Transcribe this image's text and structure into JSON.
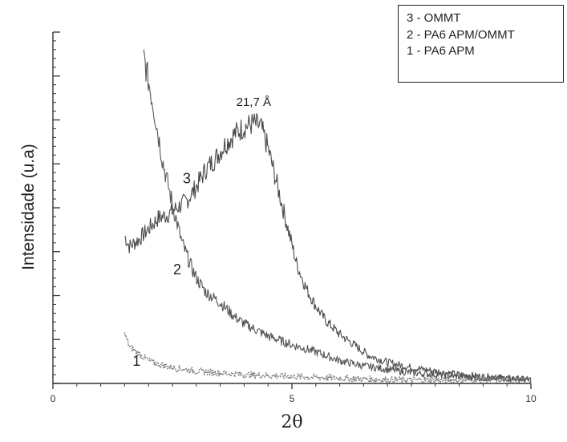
{
  "chart_data": {
    "type": "line",
    "title": "",
    "xlabel": "2θ",
    "ylabel": "Intensidade (u.a)",
    "xlim": [
      0,
      10
    ],
    "ylim": [
      0,
      100
    ],
    "x_ticks": [
      "0",
      "5",
      "10"
    ],
    "legend": [
      "3 - OMMT",
      "2 - PA6  APM/OMMT",
      "1 - PA6  APM"
    ],
    "legend_position": "top-right",
    "annotation": "21,7 Å",
    "annotation_x": 4.2,
    "annotation_y": 79,
    "series": [
      {
        "name": "3 - OMMT",
        "label": "3",
        "label_x": 2.8,
        "label_y": 57,
        "color": "#4a4a4a",
        "style": "solid",
        "x": [
          1.5,
          1.6,
          1.8,
          2.0,
          2.2,
          2.4,
          2.6,
          2.8,
          3.0,
          3.2,
          3.4,
          3.6,
          3.8,
          4.0,
          4.2,
          4.35,
          4.5,
          4.7,
          4.9,
          5.1,
          5.3,
          5.5,
          5.7,
          6.0,
          6.3,
          6.6,
          7.0,
          7.5,
          8.0,
          8.5,
          9.0,
          9.5,
          10.0
        ],
        "y": [
          42,
          39,
          41,
          44,
          47,
          48,
          50,
          52,
          56,
          61,
          64,
          68,
          71,
          73,
          74,
          73,
          67,
          56,
          45,
          34,
          27,
          22,
          18,
          14,
          11,
          8,
          6,
          4.5,
          3.5,
          2.5,
          2,
          1.5,
          1
        ]
      },
      {
        "name": "2 - PA6  APM/OMMT",
        "label": "2",
        "label_x": 2.6,
        "label_y": 31,
        "color": "#555555",
        "style": "solid",
        "x": [
          1.9,
          2.0,
          2.1,
          2.3,
          2.5,
          2.7,
          2.9,
          3.0,
          3.2,
          3.5,
          3.8,
          4.0,
          4.5,
          5.0,
          5.5,
          6.0,
          6.5,
          7.0,
          7.5,
          8.0,
          8.5,
          9.0,
          9.5,
          10.0
        ],
        "y": [
          93,
          86,
          79,
          63,
          51,
          40,
          33,
          30,
          26,
          23,
          19,
          17,
          13.5,
          11,
          9,
          6.5,
          5,
          4,
          3,
          2.5,
          2,
          1.5,
          1.5,
          1
        ]
      },
      {
        "name": "1 - PA6  APM",
        "label": "1",
        "label_x": 1.75,
        "label_y": 5,
        "color": "#777777",
        "style": "dotted",
        "x": [
          1.5,
          1.6,
          1.8,
          2.0,
          2.2,
          2.5,
          3.0,
          3.5,
          4.0,
          5.0,
          6.0,
          7.0,
          8.0,
          9.0,
          10.0
        ],
        "y": [
          14,
          10.5,
          8.5,
          6.5,
          5.5,
          4.5,
          3.5,
          3,
          2.5,
          2,
          1.5,
          1,
          1,
          1,
          1
        ]
      }
    ]
  }
}
